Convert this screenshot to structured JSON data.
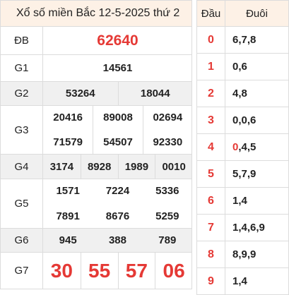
{
  "title": "Xổ số miền Bắc 12-5-2025 thứ 2",
  "prizes": [
    {
      "name": "ĐB",
      "numbers": [
        "62640"
      ]
    },
    {
      "name": "G1",
      "numbers": [
        "14561"
      ]
    },
    {
      "name": "G2",
      "numbers": [
        "53264",
        "18044"
      ]
    },
    {
      "name": "G3",
      "numbers": [
        "20416",
        "89008",
        "02694",
        "71579",
        "54507",
        "92330"
      ]
    },
    {
      "name": "G4",
      "numbers": [
        "3174",
        "8928",
        "1989",
        "0010"
      ]
    },
    {
      "name": "G5",
      "numbers": [
        "1571",
        "7224",
        "5336",
        "7891",
        "8676",
        "5259"
      ]
    },
    {
      "name": "G6",
      "numbers": [
        "945",
        "388",
        "789"
      ]
    },
    {
      "name": "G7",
      "numbers": [
        "30",
        "55",
        "57",
        "06"
      ]
    }
  ],
  "loto": {
    "header": [
      "Đầu",
      "Đuôi"
    ],
    "rows": [
      {
        "head": "0",
        "tail": [
          "6,7,8"
        ]
      },
      {
        "head": "1",
        "tail": [
          "0,6"
        ]
      },
      {
        "head": "2",
        "tail": [
          "4,8"
        ]
      },
      {
        "head": "3",
        "tail": [
          "0,0,6"
        ]
      },
      {
        "head": "4",
        "tail": [
          "0",
          ",4,5"
        ],
        "hot": 0
      },
      {
        "head": "5",
        "tail": [
          "5,7,9"
        ]
      },
      {
        "head": "6",
        "tail": [
          "1,4"
        ]
      },
      {
        "head": "7",
        "tail": [
          "1,4,6,9"
        ]
      },
      {
        "head": "8",
        "tail": [
          "8,9,9"
        ]
      },
      {
        "head": "9",
        "tail": [
          "1,4"
        ]
      }
    ]
  }
}
